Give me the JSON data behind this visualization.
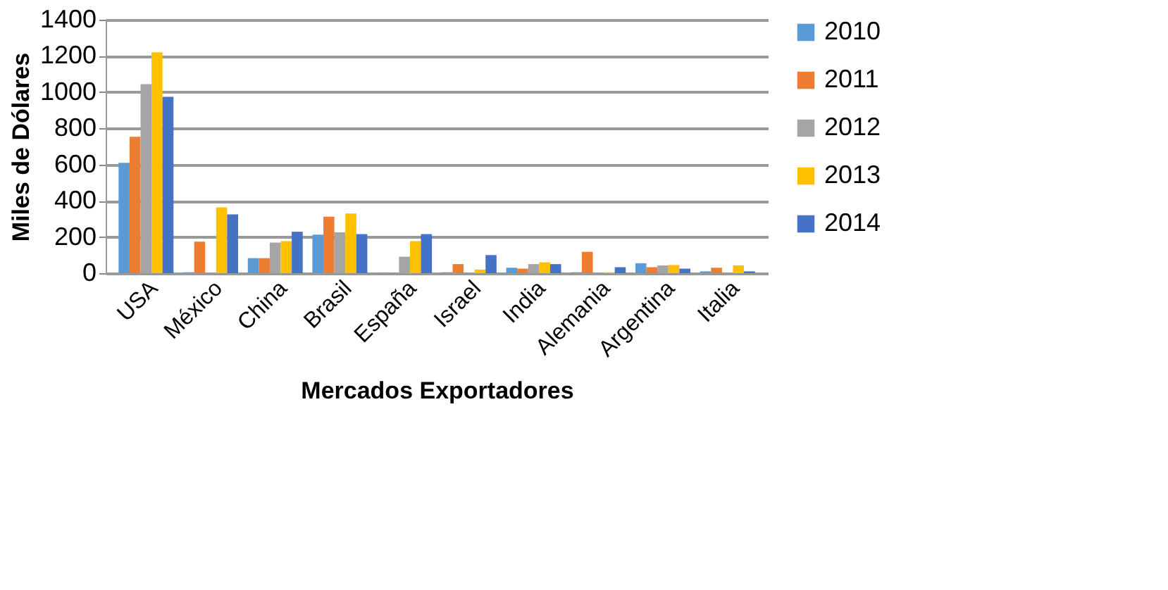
{
  "chart_data": {
    "type": "bar",
    "xlabel": "Mercados Exportadores",
    "ylabel": "Miles de Dólares",
    "categories": [
      "USA",
      "México",
      "China",
      "Brasil",
      "España",
      "Israel",
      "India",
      "Alemania",
      "Argentina",
      "Italia"
    ],
    "series": [
      {
        "name": "2010",
        "color": "#5b9bd5",
        "values": [
          610,
          5,
          83,
          213,
          3,
          5,
          30,
          5,
          55,
          10
        ]
      },
      {
        "name": "2011",
        "color": "#ed7d31",
        "values": [
          753,
          174,
          83,
          312,
          3,
          50,
          25,
          118,
          33,
          30
        ]
      },
      {
        "name": "2012",
        "color": "#a5a5a5",
        "values": [
          1044,
          null,
          169,
          226,
          91,
          null,
          50,
          null,
          43,
          null
        ]
      },
      {
        "name": "2013",
        "color": "#ffc000",
        "values": [
          1220,
          364,
          177,
          330,
          177,
          20,
          60,
          5,
          45,
          43
        ]
      },
      {
        "name": "2014",
        "color": "#4472c4",
        "values": [
          974,
          325,
          229,
          216,
          216,
          100,
          50,
          33,
          25,
          10
        ]
      }
    ],
    "ylim": [
      0,
      1400
    ],
    "yticks": [
      0,
      200,
      400,
      600,
      800,
      1000,
      1200,
      1400
    ],
    "grid": "y",
    "legend": "right"
  }
}
